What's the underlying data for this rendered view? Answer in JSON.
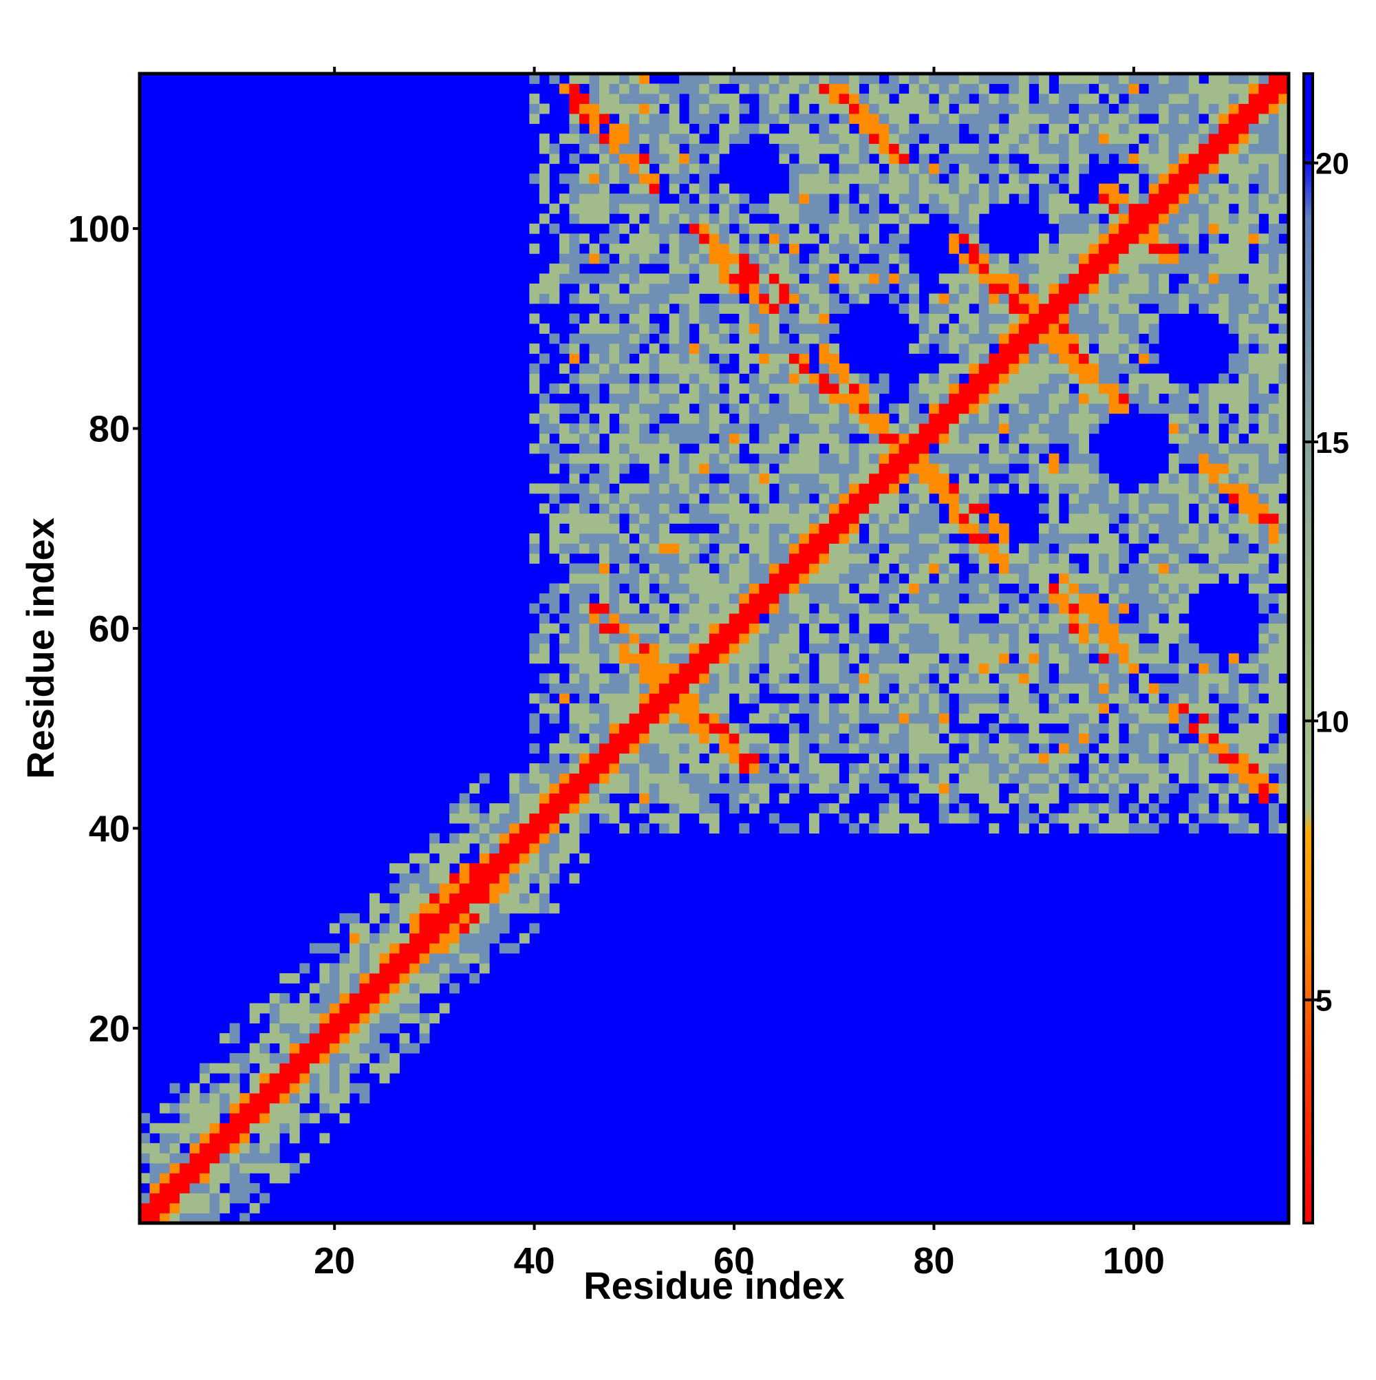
{
  "chart_data": {
    "type": "heatmap",
    "title": "",
    "xlabel": "Residue index",
    "ylabel": "Residue index",
    "n_residues": 115,
    "xlim": [
      1,
      115
    ],
    "ylim": [
      1,
      115
    ],
    "x_ticks": [
      20,
      40,
      60,
      80,
      100
    ],
    "y_ticks": [
      20,
      40,
      60,
      80,
      100
    ],
    "colorbar": {
      "ticks": [
        5,
        10,
        15,
        20
      ],
      "range": [
        1,
        21.6
      ],
      "stops": [
        {
          "value": 1,
          "color": "#ff0000"
        },
        {
          "value": 4,
          "color": "#ff4400"
        },
        {
          "value": 6,
          "color": "#ff8800"
        },
        {
          "value": 8,
          "color": "#ffaa00"
        },
        {
          "value": 8.4,
          "color": "#a8c08a"
        },
        {
          "value": 12,
          "color": "#9cb888"
        },
        {
          "value": 16,
          "color": "#7f9fa8"
        },
        {
          "value": 19,
          "color": "#5f82c0"
        },
        {
          "value": 20.2,
          "color": "#0000ff"
        },
        {
          "value": 21.6,
          "color": "#0000ff"
        }
      ]
    },
    "background_value": 21,
    "colors": {
      "near": "#ff0000",
      "contact": "#ff8c00",
      "medium": "#a2bb8a",
      "far": "#6f90b4",
      "background": "#0000ff"
    },
    "diagonal_band": {
      "red_halfwidth": 1,
      "orange_halfwidth": 2,
      "medium_halfwidth": 4
    },
    "contact_stripes": [
      {
        "from": [
          28,
          28
        ],
        "to": [
          37,
          37
        ],
        "offset_width": 3,
        "value": 6
      },
      {
        "from": [
          49,
          58
        ],
        "to": [
          57,
          50
        ],
        "value": 6
      },
      {
        "from": [
          55,
          53
        ],
        "to": [
          62,
          46
        ],
        "value": 6
      },
      {
        "from": [
          69,
          88
        ],
        "to": [
          77,
          78
        ],
        "value": 6
      },
      {
        "from": [
          57,
          97
        ],
        "to": [
          64,
          92
        ],
        "value": 6
      },
      {
        "from": [
          71,
          114
        ],
        "to": [
          76,
          108
        ],
        "value": 6
      },
      {
        "from": [
          44,
          114
        ],
        "to": [
          51,
          106
        ],
        "value": 6
      },
      {
        "from": [
          79,
          76
        ],
        "to": [
          87,
          66
        ],
        "value": 6
      },
      {
        "from": [
          84,
          97
        ],
        "to": [
          91,
          92
        ],
        "value": 6
      },
      {
        "from": [
          92,
          89
        ],
        "to": [
          99,
          82
        ],
        "value": 6
      },
      {
        "from": [
          93,
          66
        ],
        "to": [
          100,
          56
        ],
        "value": 6
      },
      {
        "from": [
          107,
          77
        ],
        "to": [
          114,
          69
        ],
        "value": 6
      },
      {
        "from": [
          104,
          52
        ],
        "to": [
          114,
          43
        ],
        "value": 6
      },
      {
        "from": [
          99,
          102
        ],
        "to": [
          104,
          97
        ],
        "value": 6
      }
    ],
    "regions": [
      {
        "name": "n-terminal-domain",
        "x": [
          1,
          45
        ],
        "y": [
          1,
          45
        ],
        "max_offset": 10
      },
      {
        "name": "upper-block",
        "x": [
          40,
          115
        ],
        "y": [
          40,
          115
        ]
      },
      {
        "name": "empty-lower-right",
        "x": [
          45,
          115
        ],
        "y": [
          1,
          40
        ]
      },
      {
        "name": "empty-upper-left",
        "x": [
          1,
          40
        ],
        "y": [
          45,
          115
        ]
      }
    ],
    "holes": [
      {
        "center": [
          80,
          83
        ],
        "radius": 5
      },
      {
        "center": [
          88,
          71
        ],
        "radius": 3
      },
      {
        "center": [
          74,
          89
        ],
        "radius": 4
      },
      {
        "center": [
          98,
          103
        ],
        "radius": 4
      },
      {
        "center": [
          100,
          78
        ],
        "radius": 4
      },
      {
        "center": [
          109,
          61
        ],
        "radius": 4
      },
      {
        "center": [
          106,
          88
        ],
        "radius": 4
      },
      {
        "center": [
          80,
          98
        ],
        "radius": 3
      },
      {
        "center": [
          62,
          106
        ],
        "radius": 3
      },
      {
        "center": [
          88,
          100
        ],
        "radius": 3
      },
      {
        "center": [
          33,
          32
        ],
        "radius": 2
      }
    ]
  }
}
